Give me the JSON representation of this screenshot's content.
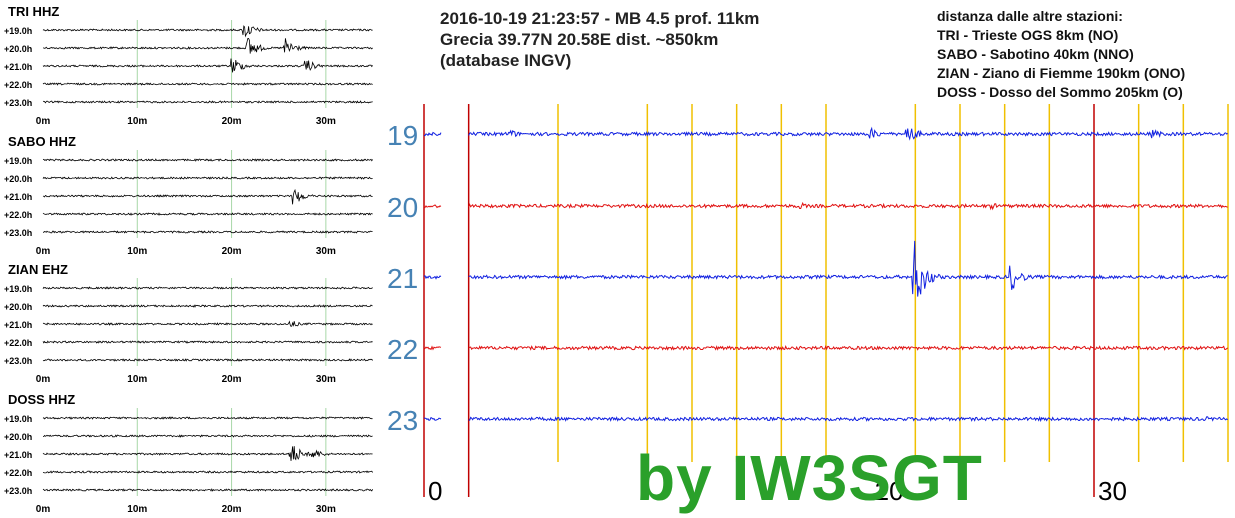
{
  "event": {
    "line1": "2016-10-19 21:23:57 - MB 4.5 prof. 11km",
    "line2": "Grecia 39.77N 20.58E dist. ~850km",
    "line3": "(database INGV)"
  },
  "distances": {
    "title": "distanza dalle altre stazioni:",
    "items": [
      "TRI - Trieste OGS 8km (NO)",
      "SABO - Sabotino 40km (NNO)",
      "ZIAN - Ziano di Fiemme 190km (ONO)",
      "DOSS - Dosso del Sommo 205km (O)"
    ]
  },
  "signature": "by IW3SGT",
  "colors": {
    "trace_blue": "#1020e0",
    "trace_red": "#e01010",
    "hour_label": "#4682b4",
    "yellow_grid": "#f0c000",
    "red_marker": "#c00000",
    "green_grid": "#a8d8a8",
    "signature": "#2aa02a"
  },
  "chart_data": [
    {
      "type": "line",
      "title": "TRI HHZ",
      "x_ticks": [
        "0m",
        "10m",
        "20m",
        "30m"
      ],
      "xlim": [
        0,
        35
      ],
      "rows": [
        "+19.0h",
        "+20.0h",
        "+21.0h",
        "+22.0h",
        "+23.0h"
      ],
      "events": [
        {
          "row": 0,
          "time": 21.3,
          "amp": 0.7
        },
        {
          "row": 1,
          "time": 21.6,
          "amp": 0.95
        },
        {
          "row": 1,
          "time": 25.6,
          "amp": 0.85
        },
        {
          "row": 2,
          "time": 20.0,
          "amp": 0.75
        },
        {
          "row": 2,
          "time": 27.8,
          "amp": 0.55
        }
      ]
    },
    {
      "type": "line",
      "title": "SABO HHZ",
      "x_ticks": [
        "0m",
        "10m",
        "20m",
        "30m"
      ],
      "xlim": [
        0,
        35
      ],
      "rows": [
        "+19.0h",
        "+20.0h",
        "+21.0h",
        "+22.0h",
        "+23.0h"
      ],
      "events": [
        {
          "row": 2,
          "time": 26.5,
          "amp": 0.75
        }
      ]
    },
    {
      "type": "line",
      "title": "ZIAN EHZ",
      "x_ticks": [
        "0m",
        "10m",
        "20m",
        "30m"
      ],
      "xlim": [
        0,
        35
      ],
      "rows": [
        "+19.0h",
        "+20.0h",
        "+21.0h",
        "+22.0h",
        "+23.0h"
      ],
      "events": [
        {
          "row": 2,
          "time": 26.2,
          "amp": 0.3
        }
      ]
    },
    {
      "type": "line",
      "title": "DOSS HHZ",
      "x_ticks": [
        "0m",
        "10m",
        "20m",
        "30m"
      ],
      "xlim": [
        0,
        35
      ],
      "rows": [
        "+19.0h",
        "+20.0h",
        "+21.0h",
        "+22.0h",
        "+23.0h"
      ],
      "events": [
        {
          "row": 2,
          "time": 26.2,
          "amp": 0.95
        },
        {
          "row": 2,
          "time": 28.6,
          "amp": 0.45
        }
      ]
    },
    {
      "type": "line",
      "title": "",
      "hour_labels": [
        "19",
        "20",
        "21",
        "22",
        "23"
      ],
      "x_tick_labels": [
        {
          "minute": 0,
          "label": "0"
        },
        {
          "minute": 20,
          "label": "20"
        },
        {
          "minute": 30,
          "label": "30"
        }
      ],
      "xlim": [
        0,
        36
      ],
      "gap": [
        0.8,
        2.0
      ],
      "yellow_gridlines": [
        6,
        10,
        12,
        14,
        16,
        18,
        22,
        24,
        26,
        28,
        32,
        34,
        36
      ],
      "red_markers": [
        0,
        2,
        30
      ],
      "rows": [
        {
          "hour": "19",
          "color": "blue",
          "events": [
            {
              "time": 3.8,
              "amp": 0.12
            },
            {
              "time": 20.0,
              "amp": 0.15
            },
            {
              "time": 21.6,
              "amp": 0.26
            },
            {
              "time": 32.6,
              "amp": 0.12
            }
          ]
        },
        {
          "hour": "20",
          "color": "red",
          "events": [
            {
              "time": 16.8,
              "amp": 0.09
            },
            {
              "time": 25.4,
              "amp": 0.08
            }
          ]
        },
        {
          "hour": "21",
          "color": "blue",
          "events": [
            {
              "time": 21.9,
              "amp": 0.95
            },
            {
              "time": 26.2,
              "amp": 0.4
            }
          ]
        },
        {
          "hour": "22",
          "color": "red",
          "events": []
        },
        {
          "hour": "23",
          "color": "blue",
          "events": [
            {
              "time": 35.0,
              "amp": 0.06
            }
          ]
        }
      ]
    }
  ]
}
